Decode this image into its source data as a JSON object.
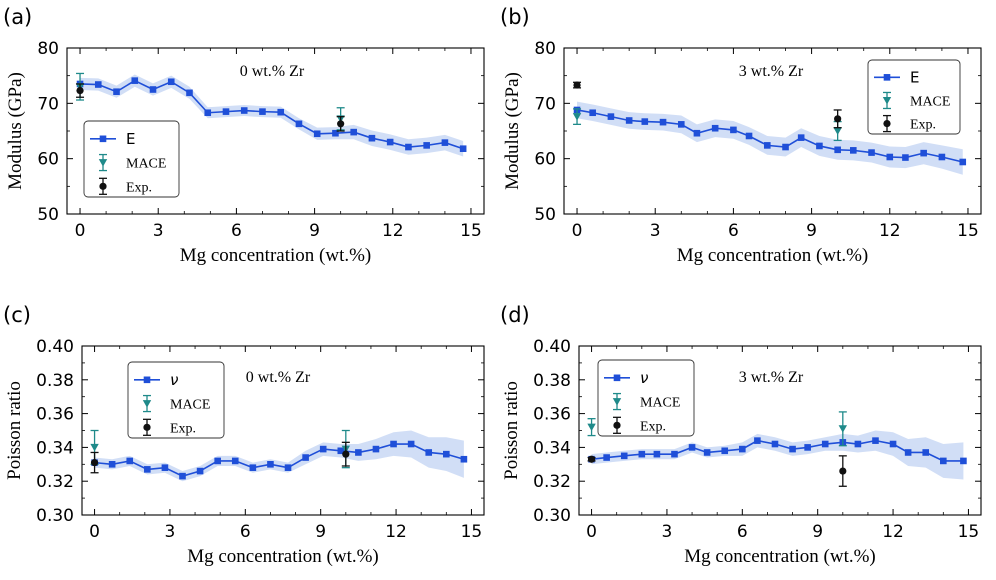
{
  "chart_data": [
    {
      "type": "line",
      "panel_label": "(a)",
      "title": "0 wt.% Zr",
      "xlabel": "Mg concentration (wt.%)",
      "ylabel": "Modulus (GPa)",
      "xlim": [
        -0.5,
        15.5
      ],
      "ylim": [
        50,
        80
      ],
      "xticks": [
        "0",
        "3",
        "6",
        "9",
        "12",
        "15"
      ],
      "yticks": [
        "50",
        "60",
        "70",
        "80"
      ],
      "legend_position": "lower-left",
      "series": [
        {
          "name": "E",
          "kind": "line-with-band",
          "color": "#1f4fd8",
          "band_color": "#c9d8f5",
          "x": [
            0,
            0.7,
            1.4,
            2.1,
            2.8,
            3.5,
            4.2,
            4.9,
            5.6,
            6.3,
            7.0,
            7.7,
            8.4,
            9.1,
            9.8,
            10.5,
            11.2,
            11.9,
            12.6,
            13.3,
            14.0,
            14.7
          ],
          "values": [
            73.5,
            73.4,
            72.1,
            74.1,
            72.5,
            73.9,
            71.9,
            68.3,
            68.5,
            68.7,
            68.5,
            68.4,
            66.3,
            64.5,
            64.6,
            64.8,
            63.7,
            63.0,
            62.1,
            62.4,
            62.9,
            61.8
          ],
          "band": [
            1.1,
            1.1,
            1.1,
            1.1,
            1.1,
            1.1,
            1.1,
            1.0,
            1.0,
            1.0,
            1.0,
            1.0,
            1.0,
            1.1,
            1.1,
            1.3,
            1.4,
            1.4,
            1.4,
            1.4,
            1.4,
            1.4
          ]
        },
        {
          "name": "MACE",
          "kind": "errorbar",
          "marker": "triangle-down",
          "color": "#1f8a8a",
          "points": [
            {
              "x": 0,
              "y": 73.0,
              "err": 2.4
            },
            {
              "x": 10,
              "y": 67.2,
              "err": 2.0
            }
          ]
        },
        {
          "name": "Exp.",
          "kind": "errorbar",
          "marker": "circle",
          "color": "#111111",
          "points": [
            {
              "x": 0,
              "y": 72.3,
              "err": 1.2
            },
            {
              "x": 10,
              "y": 66.3,
              "err": 1.3
            }
          ]
        }
      ]
    },
    {
      "type": "line",
      "panel_label": "(b)",
      "title": "3 wt.% Zr",
      "xlabel": "Mg concentration (wt.%)",
      "ylabel": "Modulus (GPa)",
      "xlim": [
        -0.5,
        15.5
      ],
      "ylim": [
        50,
        80
      ],
      "xticks": [
        "0",
        "3",
        "6",
        "9",
        "12",
        "15"
      ],
      "yticks": [
        "50",
        "60",
        "70",
        "80"
      ],
      "legend_position": "top-right",
      "series": [
        {
          "name": "E",
          "kind": "line-with-band",
          "color": "#1f4fd8",
          "band_color": "#c9d8f5",
          "x": [
            0,
            0.6,
            1.3,
            2.0,
            2.6,
            3.3,
            4.0,
            4.6,
            5.3,
            6.0,
            6.6,
            7.3,
            8.0,
            8.6,
            9.3,
            10.0,
            10.6,
            11.3,
            12.0,
            12.6,
            13.3,
            14.0,
            14.8
          ],
          "values": [
            68.8,
            68.3,
            67.6,
            66.9,
            66.7,
            66.6,
            66.2,
            64.6,
            65.5,
            65.2,
            64.1,
            62.4,
            62.1,
            63.8,
            62.3,
            61.6,
            61.5,
            61.1,
            60.3,
            60.2,
            61.0,
            60.3,
            59.4
          ],
          "band": [
            1.5,
            1.5,
            1.5,
            1.5,
            1.5,
            1.5,
            1.6,
            1.6,
            1.6,
            1.6,
            1.6,
            1.7,
            1.7,
            1.7,
            1.8,
            1.8,
            1.8,
            1.8,
            1.9,
            1.9,
            2.0,
            2.1,
            2.3
          ]
        },
        {
          "name": "MACE",
          "kind": "errorbar",
          "marker": "triangle-down",
          "color": "#1f8a8a",
          "points": [
            {
              "x": 0,
              "y": 67.6,
              "err": 1.4
            },
            {
              "x": 10,
              "y": 65.0,
              "err": 1.7
            }
          ]
        },
        {
          "name": "Exp.",
          "kind": "errorbar",
          "marker": "circle",
          "color": "#111111",
          "points": [
            {
              "x": 0,
              "y": 73.3,
              "err": 0.5
            },
            {
              "x": 10,
              "y": 67.2,
              "err": 1.6
            }
          ]
        }
      ]
    },
    {
      "type": "line",
      "panel_label": "(c)",
      "title": "0 wt.% Zr",
      "xlabel": "Mg concentration (wt.%)",
      "ylabel": "Poisson ratio",
      "xlim": [
        -0.5,
        15.5
      ],
      "ylim": [
        0.3,
        0.4
      ],
      "xticks": [
        "0",
        "3",
        "6",
        "9",
        "12",
        "15"
      ],
      "yticks": [
        "0.30",
        "0.32",
        "0.34",
        "0.36",
        "0.38",
        "0.40"
      ],
      "legend_position": "top-left",
      "series": [
        {
          "name": "ν",
          "kind": "line-with-band",
          "color": "#1f4fd8",
          "band_color": "#c9d8f5",
          "x": [
            0,
            0.7,
            1.4,
            2.1,
            2.8,
            3.5,
            4.2,
            4.9,
            5.6,
            6.3,
            7.0,
            7.7,
            8.4,
            9.1,
            9.8,
            10.5,
            11.2,
            11.9,
            12.6,
            13.3,
            14.0,
            14.7
          ],
          "values": [
            0.331,
            0.33,
            0.332,
            0.327,
            0.328,
            0.323,
            0.326,
            0.332,
            0.332,
            0.328,
            0.33,
            0.328,
            0.334,
            0.339,
            0.338,
            0.337,
            0.339,
            0.342,
            0.342,
            0.337,
            0.336,
            0.333
          ],
          "band": [
            0.003,
            0.003,
            0.003,
            0.003,
            0.003,
            0.003,
            0.003,
            0.003,
            0.003,
            0.003,
            0.003,
            0.003,
            0.004,
            0.004,
            0.004,
            0.005,
            0.006,
            0.007,
            0.008,
            0.009,
            0.01,
            0.011
          ]
        },
        {
          "name": "MACE",
          "kind": "errorbar",
          "marker": "triangle-down",
          "color": "#1f8a8a",
          "points": [
            {
              "x": 0,
              "y": 0.34,
              "err": 0.01
            },
            {
              "x": 10,
              "y": 0.339,
              "err": 0.011
            }
          ]
        },
        {
          "name": "Exp.",
          "kind": "errorbar",
          "marker": "circle",
          "color": "#111111",
          "points": [
            {
              "x": 0,
              "y": 0.331,
              "err": 0.006
            },
            {
              "x": 10,
              "y": 0.336,
              "err": 0.007
            }
          ]
        }
      ]
    },
    {
      "type": "line",
      "panel_label": "(d)",
      "title": "3 wt.% Zr",
      "xlabel": "Mg concentration (wt.%)",
      "ylabel": "Poisson ratio",
      "xlim": [
        -0.5,
        15.5
      ],
      "ylim": [
        0.3,
        0.4
      ],
      "xticks": [
        "0",
        "3",
        "6",
        "9",
        "12",
        "15"
      ],
      "yticks": [
        "0.30",
        "0.32",
        "0.34",
        "0.36",
        "0.38",
        "0.40"
      ],
      "legend_position": "top-left",
      "series": [
        {
          "name": "ν",
          "kind": "line-with-band",
          "color": "#1f4fd8",
          "band_color": "#c9d8f5",
          "x": [
            0,
            0.6,
            1.3,
            2.0,
            2.6,
            3.3,
            4.0,
            4.6,
            5.3,
            6.0,
            6.6,
            7.3,
            8.0,
            8.6,
            9.3,
            10.0,
            10.6,
            11.3,
            12.0,
            12.6,
            13.3,
            14.0,
            14.8
          ],
          "values": [
            0.333,
            0.334,
            0.335,
            0.336,
            0.336,
            0.336,
            0.34,
            0.337,
            0.338,
            0.339,
            0.344,
            0.342,
            0.339,
            0.34,
            0.342,
            0.343,
            0.342,
            0.344,
            0.342,
            0.337,
            0.337,
            0.332,
            0.332
          ],
          "band": [
            0.003,
            0.003,
            0.003,
            0.003,
            0.003,
            0.003,
            0.003,
            0.003,
            0.003,
            0.004,
            0.004,
            0.004,
            0.004,
            0.004,
            0.004,
            0.005,
            0.005,
            0.006,
            0.007,
            0.008,
            0.009,
            0.01,
            0.011
          ]
        },
        {
          "name": "MACE",
          "kind": "errorbar",
          "marker": "triangle-down",
          "color": "#1f8a8a",
          "points": [
            {
              "x": 0,
              "y": 0.352,
              "err": 0.005
            },
            {
              "x": 10,
              "y": 0.351,
              "err": 0.01
            }
          ]
        },
        {
          "name": "Exp.",
          "kind": "errorbar",
          "marker": "circle",
          "color": "#111111",
          "points": [
            {
              "x": 0,
              "y": 0.333,
              "err": 0.001
            },
            {
              "x": 10,
              "y": 0.326,
              "err": 0.009
            }
          ]
        }
      ]
    }
  ]
}
